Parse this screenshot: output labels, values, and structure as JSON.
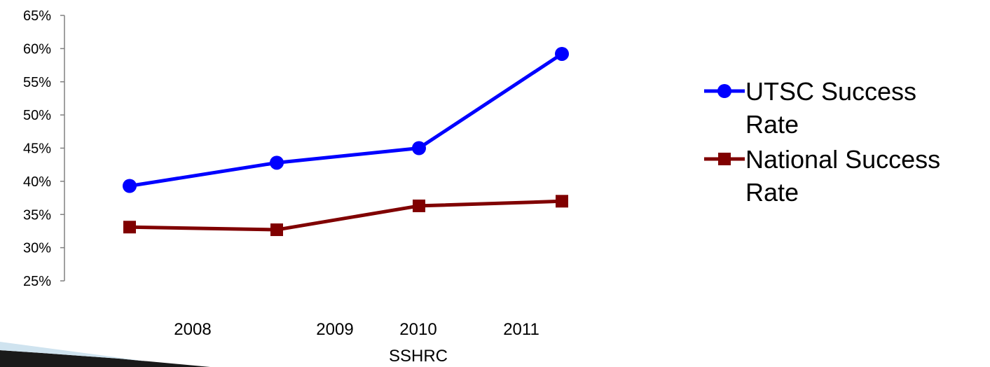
{
  "chart_data": {
    "type": "line",
    "categories": [
      "2008",
      "2009",
      "2010",
      "2011"
    ],
    "xlabel": "SSHRC",
    "ylim": [
      0.25,
      0.65
    ],
    "yticks": [
      "65%",
      "60%",
      "55%",
      "50%",
      "45%",
      "40%",
      "35%",
      "30%",
      "25%"
    ],
    "legend_position": "right",
    "series": [
      {
        "name": "UTSC Success Rate",
        "name_lines": [
          "UTSC Success",
          "Rate"
        ],
        "color": "#0000ff",
        "marker": "circle",
        "values": [
          0.393,
          0.428,
          0.45,
          0.592
        ]
      },
      {
        "name": "National Success Rate",
        "name_lines": [
          "National Success",
          "Rate"
        ],
        "color": "#800000",
        "marker": "square",
        "values": [
          0.331,
          0.327,
          0.363,
          0.37
        ]
      }
    ]
  }
}
